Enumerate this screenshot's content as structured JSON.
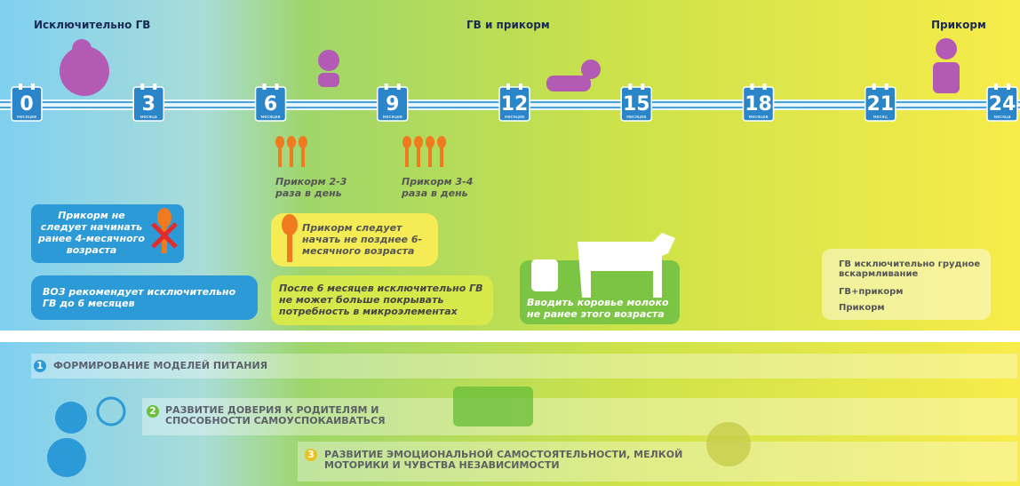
{
  "header": {
    "stages": [
      "Исключительно ГВ",
      "ГВ и прикорм",
      "Прикорм"
    ]
  },
  "timeline": {
    "months": [
      {
        "value": 0,
        "unit": "месяцев"
      },
      {
        "value": 3,
        "unit": "месяца"
      },
      {
        "value": 6,
        "unit": "месяцев"
      },
      {
        "value": 9,
        "unit": "месяцев"
      },
      {
        "value": 12,
        "unit": "месяцев"
      },
      {
        "value": 15,
        "unit": "месяцев"
      },
      {
        "value": 18,
        "unit": "месяцев"
      },
      {
        "value": 21,
        "unit": "месяц"
      },
      {
        "value": 24,
        "unit": "месяца"
      }
    ]
  },
  "feeding": [
    "Прикорм 2-3 раза в день",
    "Прикорм 3-4 раза в день"
  ],
  "notes": [
    "Прикорм не следует начинать ранее 4-месячного возраста",
    "ВОЗ рекомендует исключительно ГВ до 6 месяцев",
    "Прикорм следует начать не позднее 6-месячного возраста",
    "После 6 месяцев исключительно ГВ не может больше покрывать потребность в микроэлементах",
    "Вводить коровье молоко не ранее этого возраста"
  ],
  "legend": [
    "ГВ исключительно грудное вскармливание",
    "ГВ+прикорм",
    "Прикорм"
  ],
  "development": [
    {
      "number": "1",
      "text": "ФОРМИРОВАНИЕ МОДЕЛЕЙ ПИТАНИЯ"
    },
    {
      "number": "2",
      "text": "РАЗВИТИЕ ДОВЕРИЯ К РОДИТЕЛЯМ И СПОСОБНОСТИ САМОУСПОКАИВАТЬСЯ"
    },
    {
      "number": "3",
      "text": "РАЗВИТИЕ ЭМОЦИОНАЛЬНОЙ САМОСТОЯТЕЛЬНОСТИ, МЕЛКОЙ МОТОРИКИ И ЧУВСТВА НЕЗАВИСИМОСТИ"
    }
  ]
}
